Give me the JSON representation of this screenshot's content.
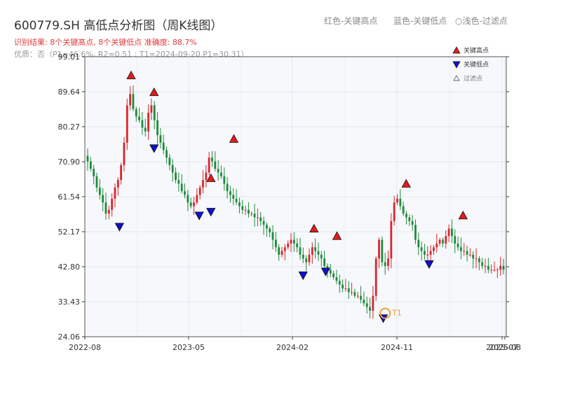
{
  "header": {
    "title": "600779.SH 高低点分析图（周K线图）",
    "legend_red": "红色-关键高点",
    "legend_blue": "蓝色-关键低点",
    "legend_hollow": "○浅色-过滤点",
    "result_text": "识别结果: 8个关键高点, 8个关键低点  准确度: 88.7%",
    "quality_text": "优质：否（P1=46.6%, R2=0.51 ; T1=2024-09-20 P1=30.31）"
  },
  "colors": {
    "up": "#d9262d",
    "down": "#1f8a3c",
    "high_marker": "#e41a1c",
    "low_marker": "#1010cc",
    "t1_marker": "#f39c32",
    "plot_bg": "#f6f8fb"
  },
  "chart_data": {
    "type": "candlestick",
    "title": "600779.SH 高低点分析图（周K线图）",
    "x_ticks": [
      "2022-08",
      "2023-05",
      "2024-02",
      "2024-11",
      "2025-07",
      "2025-08"
    ],
    "y_ticks": [
      "24.06",
      "33.43",
      "42.80",
      "52.17",
      "61.54",
      "70.90",
      "80.27",
      "89.64",
      "99.01"
    ],
    "ylim": [
      24.06,
      99.01
    ],
    "grid": true,
    "legend_position": "top-right",
    "legend": [
      {
        "label": "关键高点",
        "symbol": "filled-up-triangle",
        "color": "#e41a1c"
      },
      {
        "label": "关键低点",
        "symbol": "filled-down-triangle",
        "color": "#1010cc"
      },
      {
        "label": "过滤点",
        "symbol": "hollow-triangle",
        "color": "#ffffff"
      }
    ],
    "key_highs": [
      {
        "date": "2022-11",
        "price": 92.5
      },
      {
        "date": "2023-01",
        "price": 88.0
      },
      {
        "date": "2023-06",
        "price": 65.0
      },
      {
        "date": "2023-08",
        "price": 75.5
      },
      {
        "date": "2024-03",
        "price": 51.5
      },
      {
        "date": "2024-05",
        "price": 49.5
      },
      {
        "date": "2024-11",
        "price": 63.5
      },
      {
        "date": "2025-04",
        "price": 55.0
      }
    ],
    "key_lows": [
      {
        "date": "2022-10",
        "price": 55.0
      },
      {
        "date": "2023-01",
        "price": 76.0
      },
      {
        "date": "2023-05",
        "price": 58.0
      },
      {
        "date": "2023-06",
        "price": 59.0
      },
      {
        "date": "2024-02",
        "price": 42.0
      },
      {
        "date": "2024-04",
        "price": 43.0
      },
      {
        "date": "2024-09",
        "price": 30.5
      },
      {
        "date": "2025-01",
        "price": 45.0
      }
    ],
    "t1": {
      "label": "T1",
      "date": "2024-09-20",
      "price": 30.31
    },
    "weekly_close": [
      71,
      69,
      67,
      64,
      62,
      60,
      57,
      58,
      61,
      64,
      66,
      70,
      76,
      86,
      89,
      85,
      83,
      82,
      80,
      79,
      84,
      86,
      82,
      78,
      76,
      74,
      72,
      70,
      68,
      66,
      65,
      63,
      62,
      60,
      59,
      60,
      62,
      64,
      66,
      68,
      72,
      71,
      69,
      68,
      67,
      65,
      63,
      62,
      61,
      60,
      59,
      58,
      58,
      57,
      57,
      56,
      56,
      55,
      54,
      53,
      52,
      50,
      48,
      46,
      47,
      48,
      49,
      50,
      49,
      48,
      46,
      45,
      44,
      46,
      48,
      47,
      46,
      45,
      43,
      42,
      41,
      40,
      39,
      38,
      37,
      37,
      36,
      36,
      35,
      35,
      34,
      33,
      32,
      31,
      35,
      45,
      50,
      44,
      43,
      45,
      55,
      60,
      61,
      59,
      57,
      56,
      55,
      54,
      50,
      48,
      47,
      46,
      46,
      47,
      48,
      49,
      50,
      49,
      51,
      53,
      51,
      49,
      48,
      47,
      47,
      46,
      46,
      45,
      45,
      44,
      43,
      43,
      42,
      42,
      42,
      42,
      43,
      42
    ]
  }
}
